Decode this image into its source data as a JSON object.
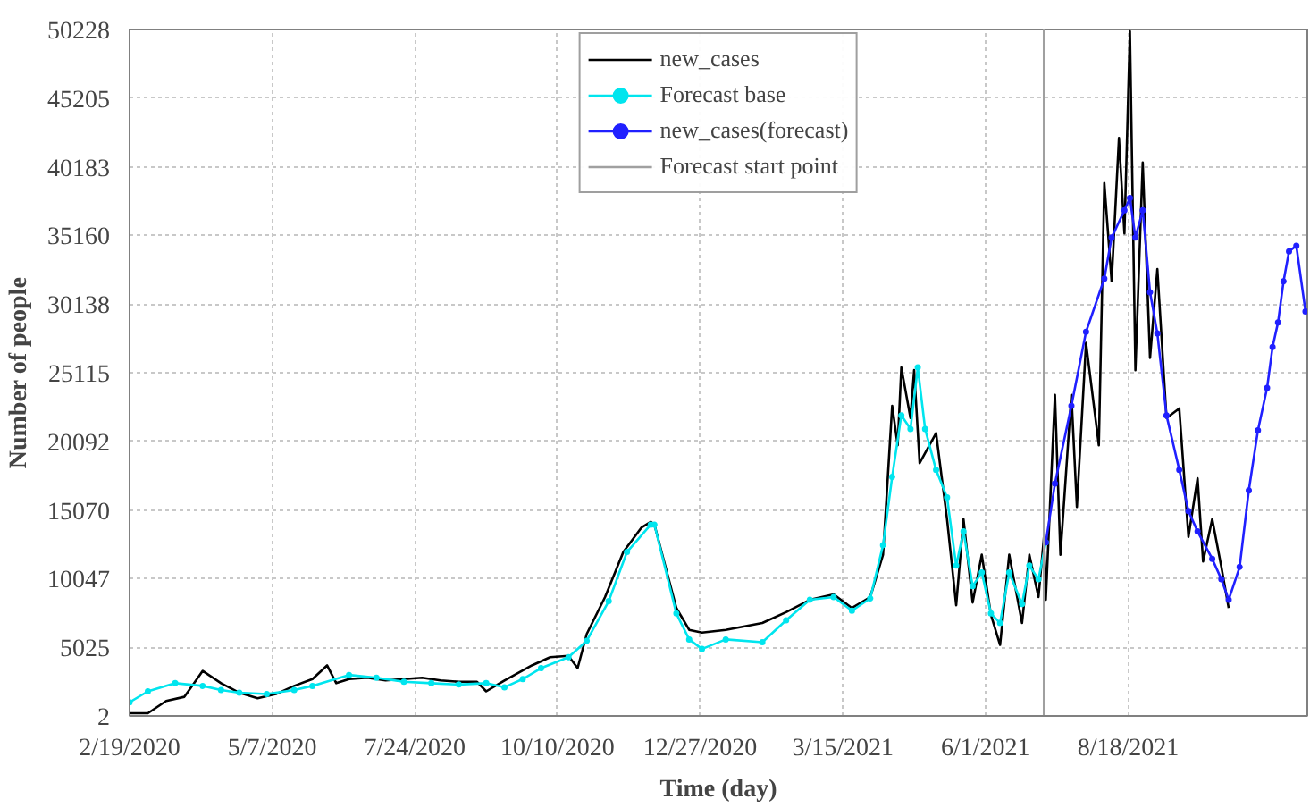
{
  "chart_data": {
    "type": "line",
    "xlabel": "Time (day)",
    "ylabel": "Number of people",
    "xlim": [
      "2020-02-19",
      "2021-11-24"
    ],
    "xticks": [
      {
        "value": "2020-02-19",
        "label": "2/19/2020"
      },
      {
        "value": "2020-05-07",
        "label": "5/7/2020"
      },
      {
        "value": "2020-07-24",
        "label": "7/24/2020"
      },
      {
        "value": "2020-10-10",
        "label": "10/10/2020"
      },
      {
        "value": "2020-12-27",
        "label": "12/27/2020"
      },
      {
        "value": "2021-03-15",
        "label": "3/15/2021"
      },
      {
        "value": "2021-06-01",
        "label": "6/1/2021"
      },
      {
        "value": "2021-08-18",
        "label": "8/18/2021"
      }
    ],
    "ylim": [
      2,
      50228
    ],
    "yticks": [
      2,
      5025,
      10047,
      15070,
      20092,
      25115,
      30138,
      35160,
      40183,
      45205,
      50228
    ],
    "grid": true,
    "legend": "top",
    "series": [
      {
        "name": "new_cases",
        "color": "#000000",
        "marker": "none",
        "x": [
          "2020-02-19",
          "2020-02-29",
          "2020-03-10",
          "2020-03-20",
          "2020-03-30",
          "2020-04-09",
          "2020-04-19",
          "2020-04-29",
          "2020-05-09",
          "2020-05-19",
          "2020-05-29",
          "2020-06-06",
          "2020-06-11",
          "2020-06-18",
          "2020-06-28",
          "2020-07-08",
          "2020-07-18",
          "2020-07-28",
          "2020-08-07",
          "2020-08-17",
          "2020-08-27",
          "2020-09-01",
          "2020-09-11",
          "2020-09-26",
          "2020-10-06",
          "2020-10-16",
          "2020-10-21",
          "2020-10-26",
          "2020-11-05",
          "2020-11-15",
          "2020-11-25",
          "2020-11-30",
          "2020-12-02",
          "2020-12-14",
          "2020-12-21",
          "2020-12-28",
          "2021-01-10",
          "2021-01-30",
          "2021-02-12",
          "2021-02-25",
          "2021-03-10",
          "2021-03-20",
          "2021-03-30",
          "2021-04-06",
          "2021-04-11",
          "2021-04-14",
          "2021-04-16",
          "2021-04-21",
          "2021-04-23",
          "2021-04-26",
          "2021-05-05",
          "2021-05-11",
          "2021-05-16",
          "2021-05-20",
          "2021-05-25",
          "2021-05-30",
          "2021-06-04",
          "2021-06-09",
          "2021-06-14",
          "2021-06-21",
          "2021-06-25",
          "2021-06-30",
          "2021-07-03",
          "2021-07-04",
          "2021-07-09",
          "2021-07-12",
          "2021-07-18",
          "2021-07-21",
          "2021-07-26",
          "2021-08-02",
          "2021-08-05",
          "2021-08-09",
          "2021-08-13",
          "2021-08-16",
          "2021-08-19",
          "2021-08-22",
          "2021-08-26",
          "2021-08-30",
          "2021-09-03",
          "2021-09-08",
          "2021-09-15",
          "2021-09-20",
          "2021-09-25",
          "2021-09-28",
          "2021-10-03",
          "2021-10-08",
          "2021-10-12"
        ],
        "values": [
          200,
          200,
          1100,
          1400,
          3300,
          2400,
          1700,
          1300,
          1600,
          2200,
          2700,
          3700,
          2400,
          2700,
          2800,
          2600,
          2700,
          2800,
          2600,
          2500,
          2500,
          1800,
          2600,
          3700,
          4300,
          4400,
          3500,
          6000,
          8700,
          12000,
          13800,
          14200,
          14000,
          7900,
          6300,
          6100,
          6300,
          6800,
          7600,
          8500,
          8900,
          7900,
          8700,
          11800,
          22700,
          19800,
          25500,
          21800,
          25300,
          18500,
          20700,
          14400,
          8100,
          14400,
          8300,
          11800,
          7400,
          5200,
          11800,
          6800,
          11800,
          8700,
          13100,
          8500,
          23500,
          11800,
          23500,
          15300,
          27300,
          19800,
          39000,
          31800,
          42300,
          35300,
          50100,
          25300,
          40500,
          26200,
          32700,
          21800,
          22500,
          13100,
          17400,
          11300,
          14400,
          10900,
          7900
        ]
      },
      {
        "name": "Forecast base",
        "color": "#00e5ee",
        "marker": "circle",
        "x": [
          "2020-02-19",
          "2020-02-29",
          "2020-03-15",
          "2020-03-30",
          "2020-04-09",
          "2020-04-19",
          "2020-05-04",
          "2020-05-19",
          "2020-05-29",
          "2020-06-18",
          "2020-07-03",
          "2020-07-18",
          "2020-08-02",
          "2020-08-17",
          "2020-09-01",
          "2020-09-11",
          "2020-09-21",
          "2020-10-01",
          "2020-10-16",
          "2020-10-26",
          "2020-11-07",
          "2020-11-17",
          "2020-11-30",
          "2020-12-02",
          "2020-12-14",
          "2020-12-21",
          "2020-12-28",
          "2021-01-10",
          "2021-01-30",
          "2021-02-12",
          "2021-02-25",
          "2021-03-10",
          "2021-03-20",
          "2021-03-30",
          "2021-04-06",
          "2021-04-11",
          "2021-04-16",
          "2021-04-21",
          "2021-04-25",
          "2021-04-29",
          "2021-05-05",
          "2021-05-11",
          "2021-05-16",
          "2021-05-20",
          "2021-05-25",
          "2021-05-30",
          "2021-06-04",
          "2021-06-09",
          "2021-06-14",
          "2021-06-21",
          "2021-06-25",
          "2021-06-30",
          "2021-07-04"
        ],
        "values": [
          1000,
          1800,
          2400,
          2200,
          1900,
          1700,
          1600,
          1900,
          2200,
          3000,
          2800,
          2500,
          2400,
          2300,
          2400,
          2100,
          2700,
          3500,
          4300,
          5500,
          8400,
          12000,
          14000,
          14000,
          7500,
          5600,
          4900,
          5600,
          5400,
          7000,
          8500,
          8700,
          7700,
          8600,
          12500,
          17500,
          22000,
          21000,
          25500,
          21000,
          18000,
          16000,
          11000,
          13500,
          9500,
          10500,
          7500,
          6800,
          10500,
          8200,
          11000,
          10000,
          12700
        ]
      },
      {
        "name": "new_cases(forecast)",
        "color": "#2020ff",
        "marker": "circle",
        "x": [
          "2021-07-04",
          "2021-07-09",
          "2021-07-18",
          "2021-07-26",
          "2021-08-05",
          "2021-08-09",
          "2021-08-16",
          "2021-08-19",
          "2021-08-22",
          "2021-08-26",
          "2021-08-30",
          "2021-09-03",
          "2021-09-08",
          "2021-09-15",
          "2021-09-20",
          "2021-09-25",
          "2021-10-03",
          "2021-10-08",
          "2021-10-12",
          "2021-10-18",
          "2021-10-23",
          "2021-10-28",
          "2021-11-02",
          "2021-11-05",
          "2021-11-08",
          "2021-11-11",
          "2021-11-14",
          "2021-11-18",
          "2021-11-23"
        ],
        "values": [
          12700,
          17000,
          22700,
          28100,
          32000,
          35000,
          37000,
          37900,
          35000,
          37000,
          31000,
          28000,
          22000,
          18000,
          15000,
          13500,
          11500,
          10000,
          8500,
          10900,
          16500,
          20900,
          24000,
          27000,
          28800,
          31800,
          34000,
          34400,
          29600
        ]
      },
      {
        "name": "Forecast start point",
        "color": "#a0a0a0",
        "marker": "none",
        "x": [
          "2021-07-03",
          "2021-07-03"
        ],
        "values": [
          2,
          50228
        ]
      }
    ]
  }
}
